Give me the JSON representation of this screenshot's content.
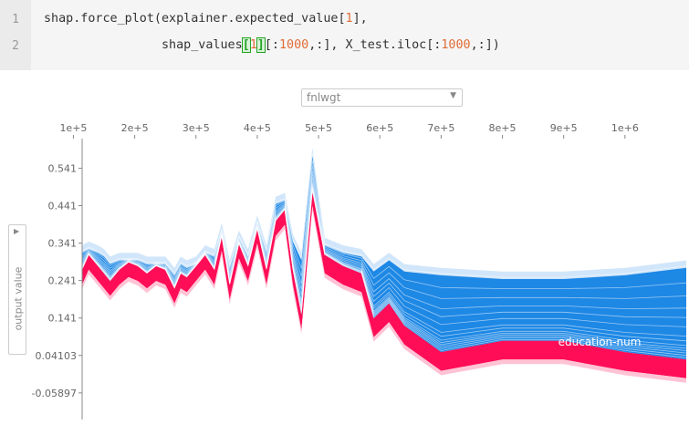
{
  "code_cell": {
    "line_numbers": [
      "1",
      "2"
    ],
    "line1": {
      "pre": "shap.force_plot(explainer.expected_value[",
      "num": "1",
      "post": "],"
    },
    "line2": {
      "indent": "                shap_values",
      "open": "[",
      "num": "1",
      "close": "]",
      "mid": "[:",
      "n1": "1000",
      "mid2": ",:], X_test.iloc[:",
      "n2": "1000",
      "post": ",:])"
    }
  },
  "plot": {
    "x_feature_select": "fnlwgt",
    "y_label": "output value",
    "annotation": "education-num",
    "colors": {
      "positive": "#ff0d57",
      "negative": "#1e88e5",
      "positive_light": "#ffc3d5",
      "negative_light": "#d1e6fa",
      "axis": "#888888"
    }
  },
  "chart_data": {
    "type": "area",
    "title": "",
    "xlabel": "fnlwgt",
    "ylabel": "output value",
    "x_ticks": [
      "1e+5",
      "2e+5",
      "3e+5",
      "4e+5",
      "5e+5",
      "6e+5",
      "7e+5",
      "8e+5",
      "9e+5",
      "1e+6"
    ],
    "y_ticks": [
      "0.541",
      "0.441",
      "0.341",
      "0.241",
      "0.141",
      "0.04103",
      "-0.05897"
    ],
    "xlim": [
      10000,
      1100000
    ],
    "ylim": [
      -0.13,
      0.62
    ],
    "x": [
      15000,
      22000,
      30000,
      40000,
      50000,
      60000,
      70000,
      80000,
      95000,
      110000,
      125000,
      140000,
      150000,
      160000,
      175000,
      190000,
      205000,
      220000,
      235000,
      250000,
      265000,
      275000,
      285000,
      300000,
      315000,
      330000,
      342000,
      355000,
      370000,
      385000,
      400000,
      415000,
      430000,
      445000,
      458000,
      472000,
      490000,
      510000,
      540000,
      570000,
      590000,
      615000,
      640000,
      700000,
      800000,
      900000,
      1000000,
      1100000
    ],
    "series": [
      {
        "name": "output",
        "values": [
          0.26,
          0.25,
          0.23,
          0.25,
          0.28,
          0.26,
          0.25,
          0.27,
          0.3,
          0.27,
          0.31,
          0.28,
          0.26,
          0.24,
          0.27,
          0.29,
          0.28,
          0.26,
          0.28,
          0.27,
          0.22,
          0.26,
          0.25,
          0.28,
          0.31,
          0.27,
          0.36,
          0.23,
          0.34,
          0.28,
          0.38,
          0.27,
          0.4,
          0.43,
          0.27,
          0.15,
          0.48,
          0.31,
          0.28,
          0.26,
          0.14,
          0.18,
          0.12,
          0.05,
          0.08,
          0.08,
          0.05,
          0.03
        ]
      }
    ],
    "band_layers": [
      0.02,
      0.045,
      0.07,
      0.095,
      0.12,
      0.15,
      0.2,
      0.25,
      0.35,
      0.45,
      0.55,
      0.68,
      0.82,
      1.0
    ],
    "base_values": [
      0.25,
      0.29,
      0.3,
      0.29,
      0.29,
      0.29,
      0.3,
      0.3,
      0.32,
      0.32,
      0.33,
      0.32,
      0.31,
      0.29,
      0.3,
      0.3,
      0.3,
      0.29,
      0.29,
      0.29,
      0.26,
      0.29,
      0.28,
      0.29,
      0.32,
      0.31,
      0.38,
      0.28,
      0.36,
      0.31,
      0.4,
      0.32,
      0.45,
      0.46,
      0.35,
      0.3,
      0.58,
      0.34,
      0.32,
      0.31,
      0.27,
      0.3,
      0.27,
      0.26,
      0.25,
      0.25,
      0.26,
      0.28
    ]
  }
}
